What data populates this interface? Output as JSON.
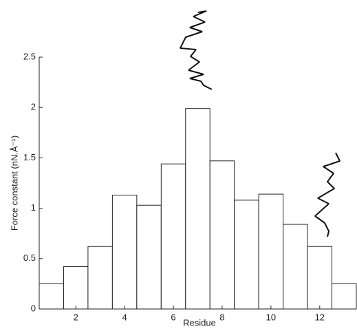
{
  "chart_data": {
    "type": "bar",
    "xlabel": "Residue",
    "ylabel": "Force constant (nN.Å⁻¹)",
    "x": [
      1,
      2,
      3,
      4,
      5,
      6,
      7,
      8,
      9,
      10,
      11,
      12,
      13
    ],
    "values": [
      0.25,
      0.42,
      0.62,
      1.13,
      1.03,
      1.44,
      1.99,
      1.47,
      1.08,
      1.14,
      0.84,
      0.62,
      0.25
    ],
    "color": "#ffffff",
    "xlim": [
      0.5,
      13.5
    ],
    "xticks": [
      2,
      4,
      6,
      8,
      10,
      12
    ],
    "ylim": [
      0,
      2.5
    ],
    "yticks": [
      0,
      0.5,
      1,
      1.5,
      2,
      2.5
    ],
    "grid": false
  }
}
